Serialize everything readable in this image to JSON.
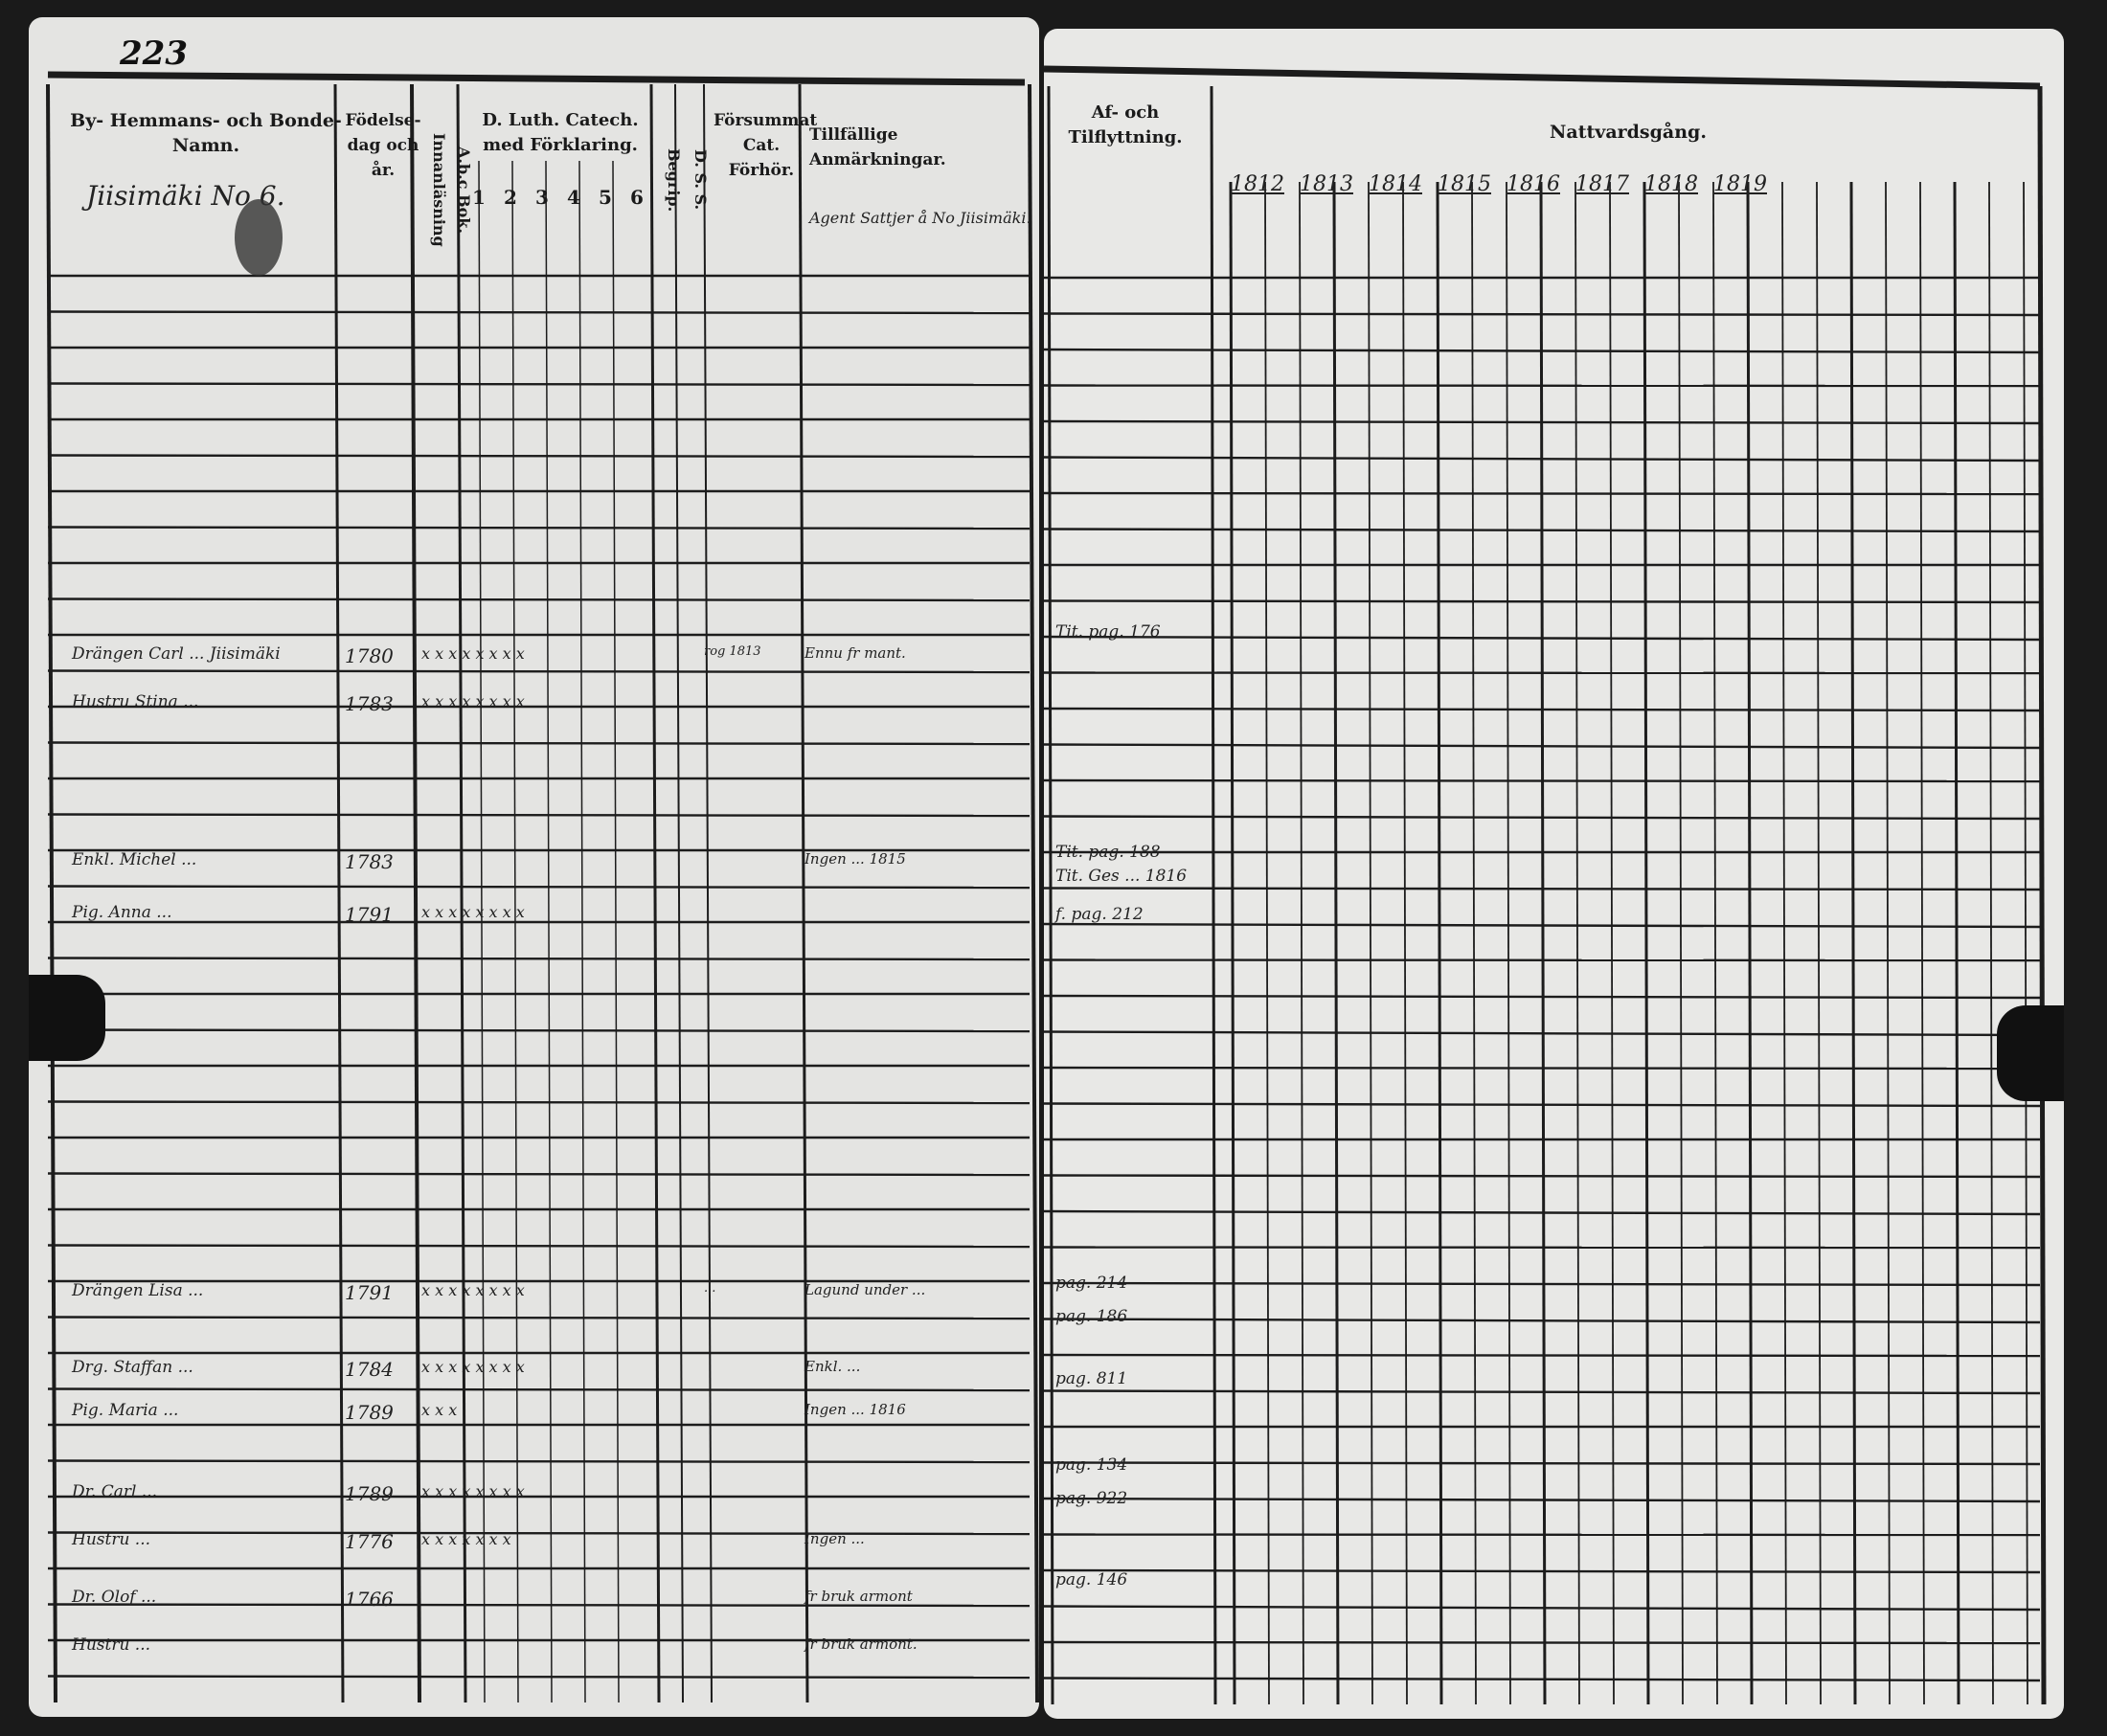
{
  "left_page": {
    "page_number": "223",
    "headers": {
      "name": "By- Hemmans- och Bonde-Namn.",
      "birth": "Födelse-dag och år.",
      "abc": "A.b.c Bok. Innanläsning",
      "catechism": "D. Luth. Catech. med Förklaring.",
      "catechism_cols": [
        "1",
        "2",
        "3",
        "4",
        "5",
        "6"
      ],
      "begrip": "Begrip.",
      "dss": "D. S. S.",
      "forsummat": "Försummat Cat. Förhör.",
      "notes": "Tillfällige Anmärkningar."
    },
    "farm_name": "Jiisimäki No 6.",
    "header_note": "Agent Sattjer å No Jiisimäki.",
    "rows": [
      {
        "name": "Drängen Carl ... Jiisimäki",
        "birth": "1780",
        "marks": "x x x x x x x x",
        "note": "Ennu fr mant.",
        "forsummat": "rog 1813"
      },
      {
        "name": "Hustru Stina ...",
        "birth": "1783",
        "marks": "x x x x x x x x",
        "note": "",
        "forsummat": ""
      },
      {
        "name": "Enkl. Michel ...",
        "birth": "1783",
        "marks": "",
        "note": "Ingen ... 1815",
        "forsummat": ""
      },
      {
        "name": "Pig. Anna ...",
        "birth": "1791",
        "marks": "x x x x x x x x",
        "note": "",
        "forsummat": ""
      },
      {
        "name": "Drängen Lisa ...",
        "birth": "1791",
        "marks": "x x x x x x x x",
        "note": "Lagund under ...",
        "forsummat": "..."
      },
      {
        "name": "Drg. Staffan ...",
        "birth": "1784",
        "marks": "x x x x x x x x",
        "note": "Enkl. ...",
        "forsummat": ""
      },
      {
        "name": "Pig. Maria ...",
        "birth": "1789",
        "marks": "x x x",
        "note": "Ingen ... 1816",
        "forsummat": ""
      },
      {
        "name": "Dr. Carl ...",
        "birth": "1789",
        "marks": "x x x x x x x x",
        "note": "",
        "forsummat": ""
      },
      {
        "name": "Hustru ...",
        "birth": "1776",
        "marks": "x x x x x x x",
        "note": "Ingen ... ",
        "forsummat": ""
      },
      {
        "name": "Dr. Olof ...",
        "birth": "1766",
        "marks": "",
        "note": "fr bruk armont",
        "forsummat": ""
      },
      {
        "name": "Hustru ...",
        "birth": "",
        "marks": "",
        "note": "fr bruk armont.",
        "forsummat": ""
      }
    ]
  },
  "right_page": {
    "headers": {
      "moving": "Af- och Tilflyttning.",
      "communion": "Nattvardsgång."
    },
    "years": [
      "1812",
      "1813",
      "1814",
      "1815",
      "1816",
      "1817",
      "1818",
      "1819"
    ],
    "moving_entries": [
      "Tit. pag. 176",
      "Tit. pag. 188",
      "Tit. Ges ... 1816",
      "f. pag. 212",
      "pag. 214",
      "pag. 186",
      "pag. 811",
      "pag. 134",
      "pag. 922",
      "pag. 146"
    ]
  }
}
